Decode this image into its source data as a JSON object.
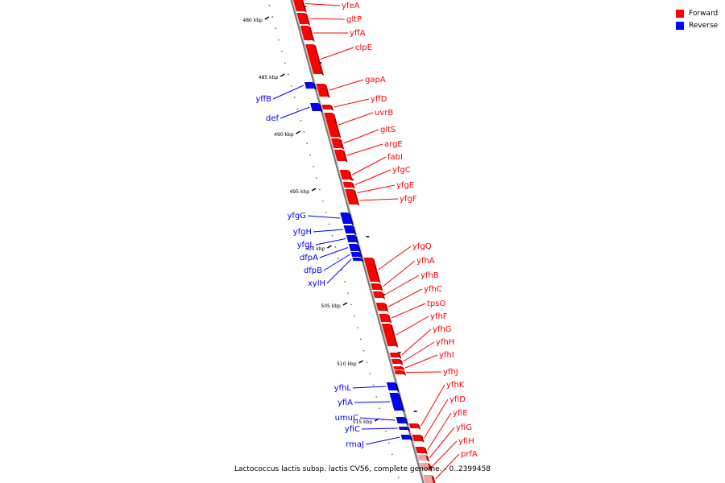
{
  "caption": "Lactococcus lactis subsp. lactis CV56, complete genome. - 0..2399458",
  "legend": {
    "forward": {
      "label": "Forward",
      "color": "#ff0000"
    },
    "reverse": {
      "label": "Reverse",
      "color": "#0000ff"
    }
  },
  "colors": {
    "forward": "#ff0000",
    "reverse": "#0000ff",
    "forward_pale": "#f5a0a0",
    "backbone": "#7a7a7a"
  },
  "ticks": [
    "480 kbp",
    "485 kbp",
    "490 kbp",
    "495 kbp",
    "500 kbp",
    "505 kbp",
    "510 kbp",
    "515 kbp"
  ],
  "genes_forward": [
    "yfeA",
    "gltP",
    "yffA",
    "clpE",
    "gapA",
    "yffD",
    "uvrB",
    "gltS",
    "argE",
    "fabI",
    "yfgC",
    "yfgE",
    "yfgF",
    "yfgQ",
    "yfhA",
    "yfhB",
    "yfhC",
    "tpsO",
    "yfhF",
    "yfhG",
    "yfhH",
    "yfhI",
    "yfhJ",
    "yfhK",
    "yfiD",
    "yfiE",
    "yfiG",
    "yfiH",
    "prfA"
  ],
  "genes_reverse": [
    "yffB",
    "def",
    "yfgG",
    "yfgH",
    "yfgL",
    "dfpA",
    "dfpB",
    "xylH",
    "yfhL",
    "yfiA",
    "umuC",
    "yfiC",
    "rmaJ"
  ]
}
